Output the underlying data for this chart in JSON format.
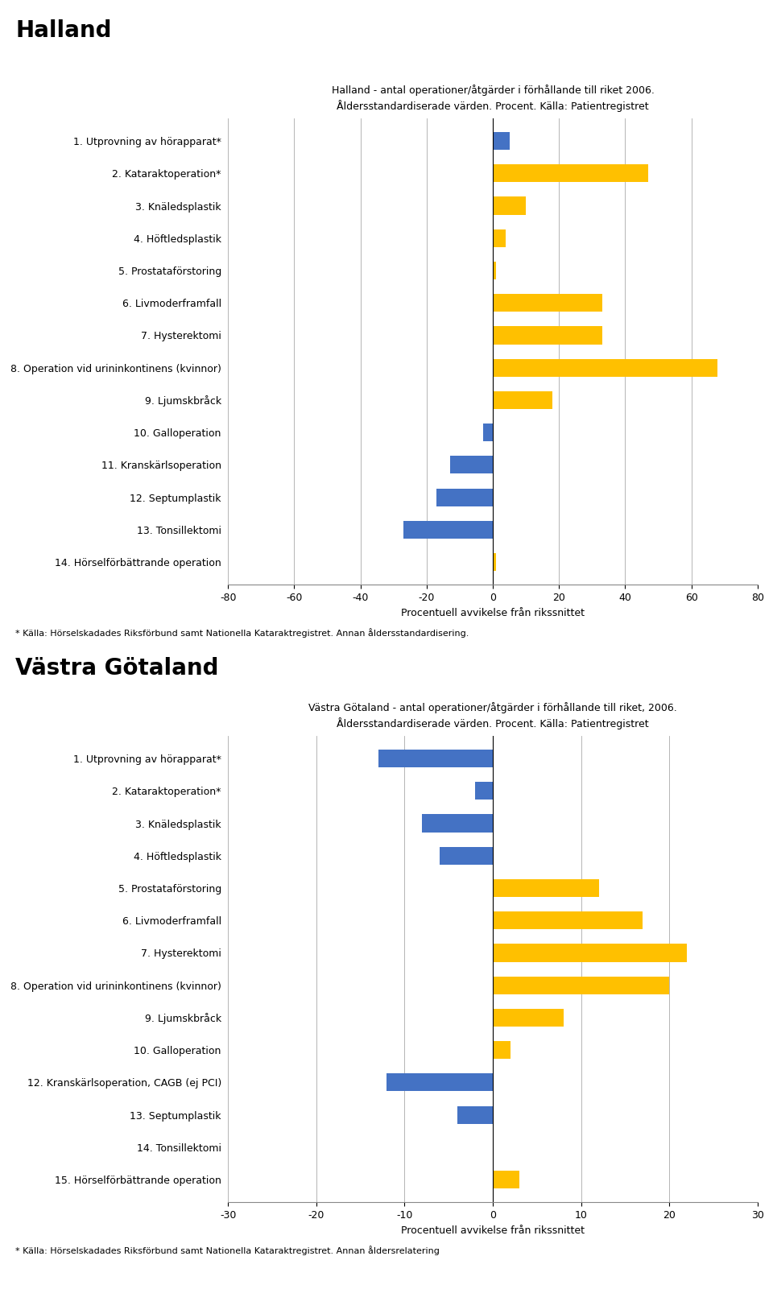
{
  "halland": {
    "title_line1": "Halland - antal operationer/åtgärder i förhållande till riket 2006.",
    "title_line2": "Åldersstandardiserade värden. Procent. Källa: Patientregistret",
    "region_label": "Halland",
    "categories": [
      "1. Utprovning av hörapparat*",
      "2. Kataraktoperation*",
      "3. Knäledsplastik",
      "4. Höftledsplastik",
      "5. Prostataförstoring",
      "6. Livmoderframfall",
      "7. Hysterektomi",
      "8. Operation vid urininkontinens (kvinnor)",
      "9. Ljumskbråck",
      "10. Galloperation",
      "11. Kranskärlsoperation",
      "12. Septumplastik",
      "13. Tonsillektomi",
      "14. Hörselförbättrande operation"
    ],
    "values": [
      5,
      47,
      10,
      4,
      1,
      33,
      33,
      68,
      18,
      -3,
      -13,
      -17,
      -27,
      1
    ],
    "colors": [
      "#4472C4",
      "#FFC000",
      "#FFC000",
      "#FFC000",
      "#FFC000",
      "#FFC000",
      "#FFC000",
      "#FFC000",
      "#FFC000",
      "#4472C4",
      "#4472C4",
      "#4472C4",
      "#4472C4",
      "#FFC000"
    ],
    "xlim": [
      -80,
      80
    ],
    "xticks": [
      -80,
      -60,
      -40,
      -20,
      0,
      20,
      40,
      60,
      80
    ],
    "xlabel": "Procentuell avvikelse från rikssnittet",
    "footnote": "* Källa: Hörselskadades Riksförbund samt Nationella Kataraktregistret. Annan åldersstandardisering."
  },
  "vastra_gotaland": {
    "title_line1": "Västra Götaland - antal operationer/åtgärder i förhållande till riket, 2006.",
    "title_line2": "Åldersstandardiserade värden. Procent. Källa: Patientregistret",
    "region_label": "Västra Götaland",
    "categories": [
      "1. Utprovning av hörapparat*",
      "2. Kataraktoperation*",
      "3. Knäledsplastik",
      "4. Höftledsplastik",
      "5. Prostataförstoring",
      "6. Livmoderframfall",
      "7. Hysterektomi",
      "8. Operation vid urininkontinens (kvinnor)",
      "9. Ljumskbråck",
      "10. Galloperation",
      "12. Kranskärlsoperation, CAGB (ej PCI)",
      "13. Septumplastik",
      "14. Tonsillektomi",
      "15. Hörselförbättrande operation"
    ],
    "values": [
      -13,
      -2,
      -8,
      -6,
      12,
      17,
      22,
      20,
      8,
      2,
      -12,
      -4,
      0,
      3
    ],
    "colors": [
      "#4472C4",
      "#4472C4",
      "#4472C4",
      "#4472C4",
      "#FFC000",
      "#FFC000",
      "#FFC000",
      "#FFC000",
      "#FFC000",
      "#FFC000",
      "#4472C4",
      "#4472C4",
      "#FFC000",
      "#FFC000"
    ],
    "xlim": [
      -30,
      30
    ],
    "xticks": [
      -30,
      -20,
      -10,
      0,
      10,
      20,
      30
    ],
    "xlabel": "Procentuell avvikelse från rikssnittet",
    "footnote": "* Källa: Hörselskadades Riksförbund samt Nationella Kataraktregistret. Annan åldersrelatering"
  },
  "blue_color": "#4472C4",
  "yellow_color": "#FFC000",
  "bar_height": 0.55,
  "background_color": "#FFFFFF",
  "grid_color": "#AAAAAA",
  "title_fontsize": 9,
  "label_fontsize": 9,
  "region_fontsize": 20,
  "footnote_fontsize": 8
}
